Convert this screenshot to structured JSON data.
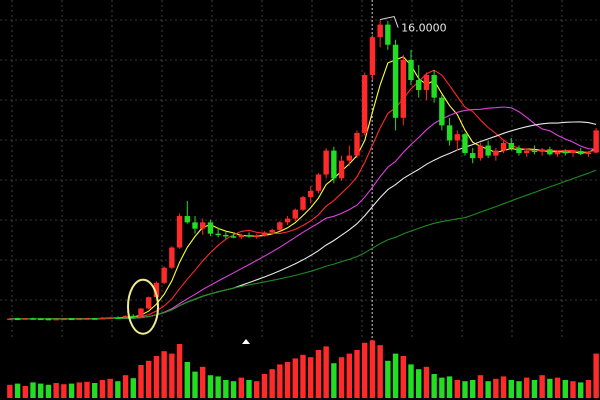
{
  "chart_data": [
    {
      "type": "candlestick",
      "title": "",
      "xlabel": "",
      "ylabel": "",
      "grid": true,
      "ylim": [
        3.2,
        16.3
      ],
      "peak_annotation": {
        "text": "16.0000",
        "value": 16.0
      },
      "colors": {
        "up": "#ff2a2a",
        "down": "#22dd22",
        "background": "#000000",
        "grid": "#6b6b6b"
      },
      "candles": [
        [
          4.12,
          4.14,
          4.1,
          4.13
        ],
        [
          4.13,
          4.16,
          4.11,
          4.12
        ],
        [
          4.12,
          4.15,
          4.1,
          4.14
        ],
        [
          4.14,
          4.17,
          4.12,
          4.13
        ],
        [
          4.13,
          4.15,
          4.11,
          4.12
        ],
        [
          4.12,
          4.14,
          4.1,
          4.11
        ],
        [
          4.11,
          4.13,
          4.09,
          4.12
        ],
        [
          4.12,
          4.14,
          4.1,
          4.13
        ],
        [
          4.13,
          4.15,
          4.11,
          4.12
        ],
        [
          4.12,
          4.14,
          4.11,
          4.13
        ],
        [
          4.13,
          4.15,
          4.12,
          4.14
        ],
        [
          4.14,
          4.16,
          4.12,
          4.13
        ],
        [
          4.13,
          4.19,
          4.12,
          4.16
        ],
        [
          4.16,
          4.2,
          4.14,
          4.18
        ],
        [
          4.18,
          4.22,
          4.15,
          4.17
        ],
        [
          4.17,
          4.25,
          4.16,
          4.24
        ],
        [
          4.24,
          4.3,
          4.2,
          4.22
        ],
        [
          4.22,
          4.55,
          4.2,
          4.53
        ],
        [
          4.53,
          5.0,
          4.5,
          4.98
        ],
        [
          4.98,
          5.6,
          4.95,
          5.55
        ],
        [
          5.55,
          6.2,
          5.5,
          6.15
        ],
        [
          6.15,
          7.0,
          6.1,
          6.95
        ],
        [
          6.95,
          8.3,
          6.9,
          8.2
        ],
        [
          8.2,
          8.8,
          7.9,
          7.95
        ],
        [
          7.95,
          8.2,
          7.5,
          7.7
        ],
        [
          7.7,
          8.1,
          7.45,
          7.95
        ],
        [
          7.95,
          8.05,
          7.4,
          7.5
        ],
        [
          7.5,
          7.75,
          7.35,
          7.45
        ],
        [
          7.45,
          7.6,
          7.3,
          7.4
        ],
        [
          7.4,
          7.55,
          7.32,
          7.36
        ],
        [
          7.36,
          7.5,
          7.28,
          7.45
        ],
        [
          7.45,
          7.55,
          7.34,
          7.38
        ],
        [
          7.38,
          7.48,
          7.3,
          7.42
        ],
        [
          7.42,
          7.6,
          7.38,
          7.55
        ],
        [
          7.55,
          7.7,
          7.45,
          7.65
        ],
        [
          7.65,
          8.0,
          7.6,
          7.95
        ],
        [
          7.95,
          8.2,
          7.85,
          8.1
        ],
        [
          8.1,
          8.5,
          8.0,
          8.45
        ],
        [
          8.45,
          9.0,
          8.4,
          8.95
        ],
        [
          8.95,
          9.4,
          8.7,
          9.2
        ],
        [
          9.2,
          9.9,
          9.1,
          9.85
        ],
        [
          9.85,
          10.9,
          9.7,
          10.8
        ],
        [
          10.8,
          10.95,
          9.5,
          9.7
        ],
        [
          9.7,
          10.6,
          9.6,
          10.4
        ],
        [
          10.4,
          11.0,
          10.2,
          10.6
        ],
        [
          10.6,
          11.6,
          10.5,
          11.5
        ],
        [
          11.5,
          13.9,
          11.4,
          13.8
        ],
        [
          13.8,
          15.4,
          13.6,
          15.3
        ],
        [
          15.3,
          16.0,
          14.9,
          15.8
        ],
        [
          15.8,
          15.95,
          14.8,
          15.0
        ],
        [
          15.0,
          15.2,
          11.6,
          12.1
        ],
        [
          12.1,
          14.6,
          11.8,
          14.4
        ],
        [
          14.4,
          14.8,
          13.4,
          13.6
        ],
        [
          13.6,
          14.2,
          12.9,
          13.2
        ],
        [
          13.2,
          13.9,
          12.8,
          13.8
        ],
        [
          13.8,
          14.0,
          12.7,
          12.9
        ],
        [
          12.9,
          13.0,
          11.6,
          11.8
        ],
        [
          11.8,
          12.1,
          11.0,
          11.2
        ],
        [
          11.2,
          11.6,
          10.8,
          11.45
        ],
        [
          11.45,
          11.5,
          10.6,
          10.7
        ],
        [
          10.7,
          10.9,
          10.3,
          10.5
        ],
        [
          10.5,
          11.1,
          10.4,
          11.0
        ],
        [
          11.0,
          11.2,
          10.5,
          10.6
        ],
        [
          10.6,
          10.9,
          10.4,
          10.8
        ],
        [
          10.8,
          11.2,
          10.7,
          11.1
        ],
        [
          11.1,
          11.3,
          10.8,
          10.9
        ],
        [
          10.9,
          11.0,
          10.6,
          10.7
        ],
        [
          10.7,
          10.85,
          10.55,
          10.8
        ],
        [
          10.8,
          11.0,
          10.65,
          10.75
        ],
        [
          10.75,
          10.9,
          10.6,
          10.85
        ],
        [
          10.85,
          10.95,
          10.6,
          10.65
        ],
        [
          10.65,
          10.8,
          10.55,
          10.75
        ],
        [
          10.75,
          10.85,
          10.6,
          10.7
        ],
        [
          10.7,
          10.8,
          10.55,
          10.78
        ],
        [
          10.78,
          10.9,
          10.62,
          10.66
        ],
        [
          10.66,
          10.78,
          10.55,
          10.72
        ],
        [
          10.72,
          11.7,
          10.7,
          11.6
        ]
      ],
      "moving_averages": [
        {
          "color": "#ffff33",
          "period": 5
        },
        {
          "color": "#ff2a2a",
          "period": 10
        },
        {
          "color": "#e040e0",
          "period": 20
        },
        {
          "color": "#e8e8e8",
          "period": 30
        },
        {
          "color": "#1e8a1e",
          "period": 60
        }
      ],
      "volume": [
        22,
        24,
        20,
        26,
        24,
        22,
        25,
        23,
        24,
        26,
        27,
        25,
        30,
        32,
        28,
        38,
        33,
        55,
        62,
        70,
        78,
        74,
        90,
        60,
        44,
        52,
        38,
        36,
        30,
        28,
        34,
        30,
        28,
        40,
        48,
        56,
        60,
        66,
        72,
        68,
        80,
        86,
        58,
        68,
        74,
        80,
        92,
        96,
        88,
        62,
        74,
        70,
        56,
        48,
        52,
        40,
        34,
        36,
        30,
        28,
        30,
        38,
        28,
        32,
        36,
        30,
        28,
        34,
        30,
        38,
        32,
        34,
        30,
        28,
        26,
        30,
        74
      ],
      "volume_range": [
        0,
        100
      ]
    }
  ]
}
